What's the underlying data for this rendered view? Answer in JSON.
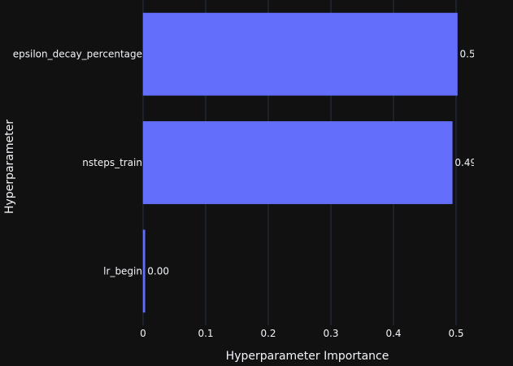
{
  "chart_data": {
    "type": "bar",
    "orientation": "horizontal",
    "categories": [
      "epsilon_decay_percentage",
      "nsteps_train",
      "lr_begin"
    ],
    "values": [
      0.502,
      0.494,
      0.003
    ],
    "data_labels": [
      "0.5",
      "0.49",
      "0.00"
    ],
    "xlabel": "Hyperparameter Importance",
    "ylabel": "Hyperparameter",
    "xlim": [
      0,
      0.5
    ],
    "xticks": [
      {
        "value": 0,
        "label": "0"
      },
      {
        "value": 0.1,
        "label": "0.1"
      },
      {
        "value": 0.2,
        "label": "0.2"
      },
      {
        "value": 0.3,
        "label": "0.3"
      },
      {
        "value": 0.4,
        "label": "0.4"
      },
      {
        "value": 0.5,
        "label": "0.5"
      }
    ],
    "grid": true,
    "colors": {
      "background": "#111111",
      "bar": "#636efa",
      "grid": "#283442",
      "text": "#f2f5fa"
    }
  }
}
